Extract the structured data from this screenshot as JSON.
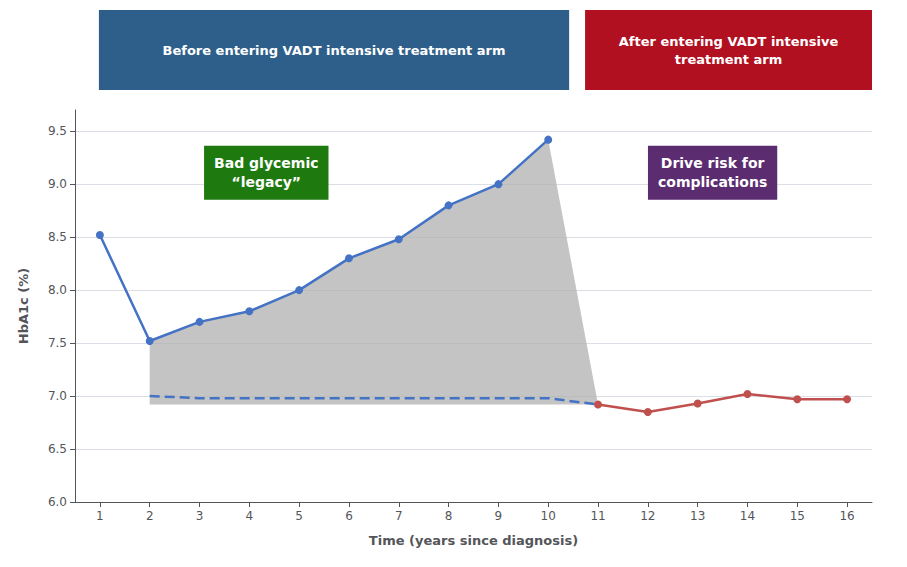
{
  "chart_data": {
    "type": "line",
    "xlabel": "Time (years since diagnosis)",
    "ylabel": "HbA1c (%)",
    "xlim": [
      0.5,
      16.5
    ],
    "xticks": [
      1,
      2,
      3,
      4,
      5,
      6,
      7,
      8,
      9,
      10,
      11,
      12,
      13,
      14,
      15,
      16
    ],
    "ylim": [
      6.0,
      9.7
    ],
    "yticks": [
      {
        "value": 6.0,
        "label": "6.0"
      },
      6.5,
      {
        "value": 7.0,
        "label": "7.0"
      },
      7.5,
      {
        "value": 8.0,
        "label": "8.0"
      },
      8.5,
      {
        "value": 9.0,
        "label": "9.0"
      },
      9.5
    ],
    "grid": true,
    "series": [
      {
        "color": "#4472c4",
        "line_style": "dashed",
        "x": [
          2,
          3,
          4,
          5,
          6,
          7,
          8,
          9,
          10,
          11
        ],
        "values": [
          7.0,
          6.98,
          6.98,
          6.98,
          6.98,
          6.98,
          6.98,
          6.98,
          6.98,
          6.92
        ]
      },
      {
        "color": "#4472c4",
        "line_style": "solid",
        "marker": "circle",
        "x": [
          1,
          2,
          3,
          4,
          5,
          6,
          7,
          8,
          9,
          10
        ],
        "values": [
          8.52,
          7.52,
          7.7,
          7.8,
          8.0,
          8.3,
          8.48,
          8.8,
          9.0,
          9.42
        ]
      },
      {
        "color": "#c0504d",
        "line_style": "solid",
        "marker": "circle",
        "x": [
          11,
          12,
          13,
          14,
          15,
          16
        ],
        "values": [
          6.92,
          6.85,
          6.93,
          7.02,
          6.97,
          6.97
        ]
      }
    ],
    "shade": {
      "color": "#b0b0b0",
      "x": [
        2,
        3,
        4,
        5,
        6,
        7,
        8,
        9,
        10,
        11
      ],
      "upper": [
        7.52,
        7.7,
        7.8,
        8.0,
        8.3,
        8.48,
        8.8,
        9.0,
        9.42,
        6.92
      ],
      "lower": 6.92
    },
    "annotations": [
      {
        "text": "Before entering VADT intensive treatment arm",
        "color": "#2e5f8a"
      },
      {
        "text": "After entering VADT intensive\ntreatment arm",
        "color": "#b01020"
      },
      {
        "text": "Bad glycemic\n“legacy”",
        "color": "#1e7a0e"
      },
      {
        "text": "Drive risk for\ncomplications",
        "color": "#5b2c6f"
      }
    ]
  }
}
